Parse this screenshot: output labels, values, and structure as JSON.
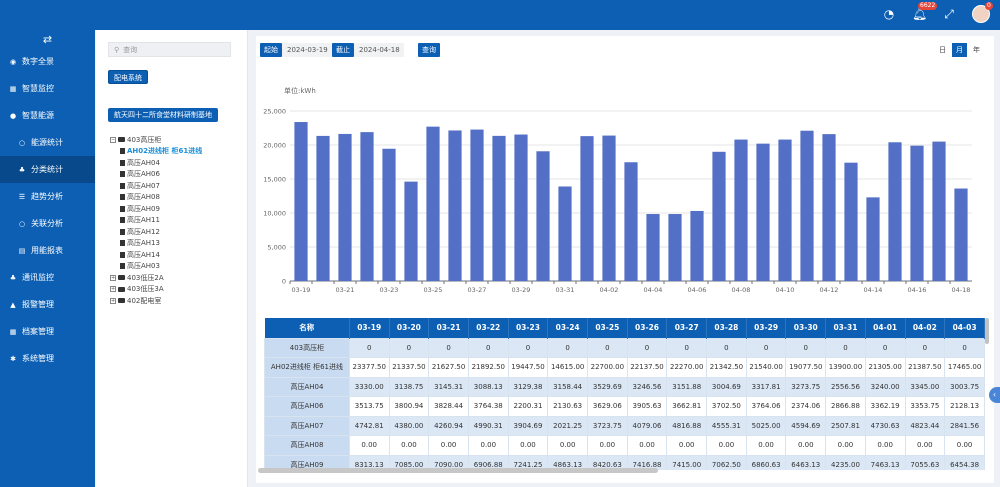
{
  "topbar": {
    "notification_count": "6622",
    "avatar_badge": "0"
  },
  "sidebar": {
    "items": [
      {
        "label": "数字全景",
        "icon": "circle-dot-icon"
      },
      {
        "label": "智慧监控",
        "icon": "grid-icon"
      },
      {
        "label": "智慧能源",
        "icon": "bulb-icon"
      },
      {
        "label": "能源统计",
        "icon": "ring-icon"
      },
      {
        "label": "分类统计",
        "icon": "hierarchy-icon"
      },
      {
        "label": "趋势分析",
        "icon": "list-icon"
      },
      {
        "label": "关联分析",
        "icon": "ring-icon"
      },
      {
        "label": "用能报表",
        "icon": "table-icon"
      },
      {
        "label": "通讯监控",
        "icon": "network-icon"
      },
      {
        "label": "报警管理",
        "icon": "bell-icon"
      },
      {
        "label": "档案管理",
        "icon": "archive-icon"
      },
      {
        "label": "系统管理",
        "icon": "gear-icon"
      }
    ]
  },
  "left_panel": {
    "search_placeholder": "查询",
    "system_button": "配电系统",
    "site_button": "航天四十二所食堂材料研制基地",
    "tree": [
      {
        "label": "403高压柜",
        "level": 0,
        "type": "folder",
        "toggle": "−"
      },
      {
        "label": "AH02进线柜 柜61进线",
        "level": 1,
        "type": "file",
        "selected": true
      },
      {
        "label": "高压AH04",
        "level": 1,
        "type": "file"
      },
      {
        "label": "高压AH06",
        "level": 1,
        "type": "file"
      },
      {
        "label": "高压AH07",
        "level": 1,
        "type": "file"
      },
      {
        "label": "高压AH08",
        "level": 1,
        "type": "file"
      },
      {
        "label": "高压AH09",
        "level": 1,
        "type": "file"
      },
      {
        "label": "高压AH11",
        "level": 1,
        "type": "file"
      },
      {
        "label": "高压AH12",
        "level": 1,
        "type": "file"
      },
      {
        "label": "高压AH13",
        "level": 1,
        "type": "file"
      },
      {
        "label": "高压AH14",
        "level": 1,
        "type": "file"
      },
      {
        "label": "高压AH03",
        "level": 1,
        "type": "file"
      },
      {
        "label": "403低压2A",
        "level": 0,
        "type": "folder",
        "toggle": "+"
      },
      {
        "label": "403低压3A",
        "level": 0,
        "type": "folder",
        "toggle": "+"
      },
      {
        "label": "402配电室",
        "level": 0,
        "type": "folder",
        "toggle": "+"
      }
    ]
  },
  "query": {
    "start_label": "起始",
    "start_date": "2024-03-19",
    "end_label": "截止",
    "end_date": "2024-04-18",
    "query_button": "查询",
    "periods": [
      "日",
      "月",
      "年"
    ],
    "active_period": "月"
  },
  "chart_data": {
    "type": "bar",
    "ylabel": "单位:kWh",
    "ylim": [
      0,
      25000
    ],
    "yticks": [
      "0",
      "5,000",
      "10,000",
      "15,000",
      "20,000",
      "25,000"
    ],
    "color": "#5470c6",
    "grid": "horizontal",
    "categories": [
      "03-19",
      "03-20",
      "03-21",
      "03-22",
      "03-23",
      "03-24",
      "03-25",
      "03-26",
      "03-27",
      "03-28",
      "03-29",
      "03-30",
      "03-31",
      "04-01",
      "04-02",
      "04-03",
      "04-04",
      "04-05",
      "04-06",
      "04-07",
      "04-08",
      "04-09",
      "04-10",
      "04-11",
      "04-12",
      "04-13",
      "04-14",
      "04-15",
      "04-16",
      "04-17",
      "04-18"
    ],
    "xtick_labels": [
      "03-19",
      "03-21",
      "03-23",
      "03-25",
      "03-27",
      "03-29",
      "03-31",
      "04-02",
      "04-04",
      "04-06",
      "04-08",
      "04-10",
      "04-12",
      "04-14",
      "04-16",
      "04-18"
    ],
    "values": [
      23377.5,
      21337.5,
      21627.5,
      21892.5,
      19447.5,
      14615,
      22700,
      22137.5,
      22270,
      21342.5,
      21540,
      19077.5,
      13900,
      21305,
      21387.5,
      17465,
      9850,
      9850,
      10300,
      19000,
      20800,
      20200,
      20800,
      22100,
      21600,
      17400,
      12300,
      20400,
      19900,
      20500,
      13600
    ]
  },
  "table": {
    "headers": [
      "名称",
      "03-19",
      "03-20",
      "03-21",
      "03-22",
      "03-23",
      "03-24",
      "03-25",
      "03-26",
      "03-27",
      "03-28",
      "03-29",
      "03-30",
      "03-31",
      "04-01",
      "04-02",
      "04-03"
    ],
    "rows": [
      [
        "403高压柜",
        "0",
        "0",
        "0",
        "0",
        "0",
        "0",
        "0",
        "0",
        "0",
        "0",
        "0",
        "0",
        "0",
        "0",
        "0",
        "0"
      ],
      [
        "AH02进线柜 柜61进线",
        "23377.50",
        "21337.50",
        "21627.50",
        "21892.50",
        "19447.50",
        "14615.00",
        "22700.00",
        "22137.50",
        "22270.00",
        "21342.50",
        "21540.00",
        "19077.50",
        "13900.00",
        "21305.00",
        "21387.50",
        "17465.00"
      ],
      [
        "高压AH04",
        "3330.00",
        "3138.75",
        "3145.31",
        "3088.13",
        "3129.38",
        "3158.44",
        "3529.69",
        "3246.56",
        "3151.88",
        "3004.69",
        "3317.81",
        "3273.75",
        "2556.56",
        "3240.00",
        "3345.00",
        "3003.75"
      ],
      [
        "高压AH06",
        "3513.75",
        "3800.94",
        "3828.44",
        "3764.38",
        "2200.31",
        "2130.63",
        "3629.06",
        "3905.63",
        "3662.81",
        "3702.50",
        "3764.06",
        "2374.06",
        "2866.88",
        "3362.19",
        "3353.75",
        "2128.13"
      ],
      [
        "高压AH07",
        "4742.81",
        "4380.00",
        "4260.94",
        "4990.31",
        "3904.69",
        "2021.25",
        "3723.75",
        "4079.06",
        "4816.88",
        "4555.31",
        "5025.00",
        "4594.69",
        "2507.81",
        "4730.63",
        "4823.44",
        "2841.56"
      ],
      [
        "高压AH08",
        "0.00",
        "0.00",
        "0.00",
        "0.00",
        "0.00",
        "0.00",
        "0.00",
        "0.00",
        "0.00",
        "0.00",
        "0.00",
        "0.00",
        "0.00",
        "0.00",
        "0.00",
        "0.00"
      ],
      [
        "高压AH09",
        "8313.13",
        "7085.00",
        "7090.00",
        "6906.88",
        "7241.25",
        "4863.13",
        "8420.63",
        "7416.88",
        "7415.00",
        "7062.50",
        "6860.63",
        "6463.13",
        "4235.00",
        "7463.13",
        "7055.63",
        "6454.38"
      ]
    ]
  }
}
